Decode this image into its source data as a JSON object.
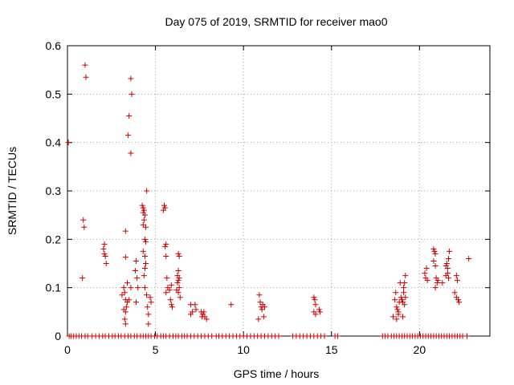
{
  "chart_data": {
    "type": "scatter",
    "title": "Day 075 of 2019, SRMTID for receiver mao0",
    "xlabel": "GPS time / hours",
    "ylabel": "SRMTID / TECUs",
    "xlim": [
      0,
      24
    ],
    "ylim": [
      0,
      0.6
    ],
    "xticks": [
      0,
      5,
      10,
      15,
      20
    ],
    "yticks": [
      0,
      0.1,
      0.2,
      0.3,
      0.4,
      0.5,
      0.6
    ],
    "xtick_labels": [
      "0",
      "5",
      "10",
      "15",
      "20"
    ],
    "ytick_labels": [
      "0",
      "0.1",
      "0.2",
      "0.3",
      "0.4",
      "0.5",
      "0.6"
    ],
    "grid": true,
    "marker": "+",
    "color": "#cc0000",
    "series": [
      {
        "name": "mao0",
        "points": [
          [
            0.05,
            0.4
          ],
          [
            1.0,
            0.56
          ],
          [
            1.05,
            0.535
          ],
          [
            0.9,
            0.24
          ],
          [
            0.95,
            0.225
          ],
          [
            0.85,
            0.12
          ],
          [
            3.6,
            0.532
          ],
          [
            3.65,
            0.5
          ],
          [
            3.5,
            0.455
          ],
          [
            3.45,
            0.415
          ],
          [
            3.6,
            0.378
          ],
          [
            3.3,
            0.217
          ],
          [
            3.3,
            0.163
          ],
          [
            3.4,
            0.11
          ],
          [
            3.2,
            0.1
          ],
          [
            3.25,
            0.09
          ],
          [
            3.3,
            0.075
          ],
          [
            3.4,
            0.07
          ],
          [
            3.35,
            0.06
          ],
          [
            3.2,
            0.055
          ],
          [
            3.3,
            0.05
          ],
          [
            3.25,
            0.035
          ],
          [
            3.3,
            0.025
          ],
          [
            3.5,
            0.075
          ],
          [
            3.1,
            0.085
          ],
          [
            3.6,
            0.1
          ],
          [
            2.1,
            0.19
          ],
          [
            2.05,
            0.18
          ],
          [
            2.1,
            0.17
          ],
          [
            2.15,
            0.165
          ],
          [
            2.2,
            0.15
          ],
          [
            3.9,
            0.155
          ],
          [
            3.85,
            0.135
          ],
          [
            3.95,
            0.12
          ],
          [
            4.0,
            0.1
          ],
          [
            3.9,
            0.07
          ],
          [
            4.25,
            0.27
          ],
          [
            4.3,
            0.265
          ],
          [
            4.35,
            0.26
          ],
          [
            4.3,
            0.255
          ],
          [
            4.4,
            0.25
          ],
          [
            4.35,
            0.24
          ],
          [
            4.3,
            0.23
          ],
          [
            4.45,
            0.225
          ],
          [
            4.5,
            0.3
          ],
          [
            4.4,
            0.2
          ],
          [
            4.45,
            0.195
          ],
          [
            4.3,
            0.175
          ],
          [
            4.4,
            0.165
          ],
          [
            4.45,
            0.15
          ],
          [
            4.4,
            0.14
          ],
          [
            4.35,
            0.125
          ],
          [
            4.4,
            0.1
          ],
          [
            4.5,
            0.085
          ],
          [
            4.55,
            0.06
          ],
          [
            4.7,
            0.08
          ],
          [
            4.75,
            0.07
          ],
          [
            4.6,
            0.045
          ],
          [
            4.6,
            0.025
          ],
          [
            5.5,
            0.27
          ],
          [
            5.55,
            0.265
          ],
          [
            5.45,
            0.26
          ],
          [
            5.6,
            0.19
          ],
          [
            5.55,
            0.185
          ],
          [
            5.6,
            0.165
          ],
          [
            5.65,
            0.12
          ],
          [
            5.7,
            0.1
          ],
          [
            5.6,
            0.09
          ],
          [
            5.8,
            0.095
          ],
          [
            5.85,
            0.075
          ],
          [
            5.9,
            0.065
          ],
          [
            5.95,
            0.06
          ],
          [
            5.9,
            0.105
          ],
          [
            6.3,
            0.17
          ],
          [
            6.35,
            0.165
          ],
          [
            6.3,
            0.135
          ],
          [
            6.25,
            0.125
          ],
          [
            6.35,
            0.12
          ],
          [
            6.3,
            0.115
          ],
          [
            6.25,
            0.11
          ],
          [
            6.35,
            0.1
          ],
          [
            6.3,
            0.09
          ],
          [
            6.4,
            0.08
          ],
          [
            6.2,
            0.095
          ],
          [
            7.0,
            0.065
          ],
          [
            7.25,
            0.065
          ],
          [
            7.1,
            0.05
          ],
          [
            7.0,
            0.045
          ],
          [
            7.3,
            0.055
          ],
          [
            7.6,
            0.05
          ],
          [
            7.7,
            0.045
          ],
          [
            7.8,
            0.04
          ],
          [
            7.9,
            0.035
          ],
          [
            7.65,
            0.04
          ],
          [
            7.75,
            0.05
          ],
          [
            9.3,
            0.065
          ],
          [
            10.9,
            0.085
          ],
          [
            10.95,
            0.07
          ],
          [
            11.0,
            0.06
          ],
          [
            11.1,
            0.065
          ],
          [
            11.05,
            0.055
          ],
          [
            11.15,
            0.04
          ],
          [
            10.85,
            0.035
          ],
          [
            11.2,
            0.06
          ],
          [
            14.0,
            0.08
          ],
          [
            14.05,
            0.075
          ],
          [
            14.1,
            0.065
          ],
          [
            14.0,
            0.05
          ],
          [
            14.1,
            0.045
          ],
          [
            14.3,
            0.055
          ],
          [
            14.35,
            0.05
          ],
          [
            18.5,
            0.04
          ],
          [
            18.6,
            0.075
          ],
          [
            18.65,
            0.09
          ],
          [
            18.7,
            0.06
          ],
          [
            18.75,
            0.055
          ],
          [
            18.8,
            0.05
          ],
          [
            18.85,
            0.07
          ],
          [
            18.9,
            0.11
          ],
          [
            18.95,
            0.08
          ],
          [
            19.0,
            0.075
          ],
          [
            19.05,
            0.07
          ],
          [
            18.7,
            0.035
          ],
          [
            18.8,
            0.045
          ],
          [
            19.05,
            0.04
          ],
          [
            19.1,
            0.1
          ],
          [
            19.15,
            0.11
          ],
          [
            19.2,
            0.125
          ],
          [
            19.1,
            0.09
          ],
          [
            19.15,
            0.065
          ],
          [
            19.2,
            0.08
          ],
          [
            20.3,
            0.13
          ],
          [
            20.35,
            0.12
          ],
          [
            20.4,
            0.14
          ],
          [
            20.45,
            0.115
          ],
          [
            20.8,
            0.18
          ],
          [
            20.85,
            0.175
          ],
          [
            20.9,
            0.17
          ],
          [
            20.8,
            0.155
          ],
          [
            20.9,
            0.145
          ],
          [
            20.95,
            0.12
          ],
          [
            21.0,
            0.11
          ],
          [
            20.9,
            0.1
          ],
          [
            21.05,
            0.115
          ],
          [
            21.3,
            0.11
          ],
          [
            21.5,
            0.145
          ],
          [
            21.55,
            0.15
          ],
          [
            21.6,
            0.14
          ],
          [
            21.65,
            0.16
          ],
          [
            21.7,
            0.175
          ],
          [
            21.6,
            0.13
          ],
          [
            21.5,
            0.125
          ],
          [
            21.65,
            0.12
          ],
          [
            22.1,
            0.125
          ],
          [
            22.15,
            0.115
          ],
          [
            22.0,
            0.09
          ],
          [
            22.1,
            0.08
          ],
          [
            22.2,
            0.075
          ],
          [
            22.25,
            0.07
          ],
          [
            22.8,
            0.16
          ],
          [
            0.1,
            0.0
          ],
          [
            0.2,
            0.0
          ],
          [
            0.35,
            0.0
          ],
          [
            0.5,
            0.0
          ],
          [
            0.65,
            0.0
          ],
          [
            0.8,
            0.0
          ],
          [
            1.0,
            0.0
          ],
          [
            1.15,
            0.0
          ],
          [
            1.4,
            0.0
          ],
          [
            1.6,
            0.0
          ],
          [
            1.8,
            0.0
          ],
          [
            2.0,
            0.0
          ],
          [
            2.15,
            0.0
          ],
          [
            2.35,
            0.0
          ],
          [
            2.55,
            0.0
          ],
          [
            2.7,
            0.0
          ],
          [
            2.9,
            0.0
          ],
          [
            3.05,
            0.0
          ],
          [
            3.25,
            0.0
          ],
          [
            3.45,
            0.0
          ],
          [
            3.6,
            0.0
          ],
          [
            3.8,
            0.0
          ],
          [
            3.95,
            0.0
          ],
          [
            4.15,
            0.0
          ],
          [
            4.3,
            0.0
          ],
          [
            4.45,
            0.0
          ],
          [
            4.6,
            0.0
          ],
          [
            4.75,
            0.0
          ],
          [
            4.95,
            0.0
          ],
          [
            5.1,
            0.0
          ],
          [
            5.3,
            0.0
          ],
          [
            5.45,
            0.0
          ],
          [
            5.6,
            0.0
          ],
          [
            5.8,
            0.0
          ],
          [
            6.0,
            0.0
          ],
          [
            6.15,
            0.0
          ],
          [
            6.3,
            0.0
          ],
          [
            6.5,
            0.0
          ],
          [
            6.65,
            0.0
          ],
          [
            6.8,
            0.0
          ],
          [
            7.0,
            0.0
          ],
          [
            7.2,
            0.0
          ],
          [
            7.4,
            0.0
          ],
          [
            7.6,
            0.0
          ],
          [
            7.8,
            0.0
          ],
          [
            8.0,
            0.0
          ],
          [
            8.2,
            0.0
          ],
          [
            8.45,
            0.0
          ],
          [
            8.6,
            0.0
          ],
          [
            8.8,
            0.0
          ],
          [
            9.0,
            0.0
          ],
          [
            9.2,
            0.0
          ],
          [
            9.4,
            0.0
          ],
          [
            9.6,
            0.0
          ],
          [
            9.8,
            0.0
          ],
          [
            10.0,
            0.0
          ],
          [
            10.2,
            0.0
          ],
          [
            10.4,
            0.0
          ],
          [
            10.6,
            0.0
          ],
          [
            10.8,
            0.0
          ],
          [
            11.0,
            0.0
          ],
          [
            11.2,
            0.0
          ],
          [
            11.4,
            0.0
          ],
          [
            11.6,
            0.0
          ],
          [
            11.8,
            0.0
          ],
          [
            12.0,
            0.0
          ],
          [
            12.8,
            0.0
          ],
          [
            13.0,
            0.0
          ],
          [
            13.2,
            0.0
          ],
          [
            13.4,
            0.0
          ],
          [
            13.6,
            0.0
          ],
          [
            13.8,
            0.0
          ],
          [
            14.0,
            0.0
          ],
          [
            14.2,
            0.0
          ],
          [
            14.4,
            0.0
          ],
          [
            14.6,
            0.0
          ],
          [
            15.2,
            0.0
          ],
          [
            15.35,
            0.0
          ],
          [
            17.9,
            0.0
          ],
          [
            18.05,
            0.0
          ],
          [
            18.2,
            0.0
          ],
          [
            18.4,
            0.0
          ],
          [
            18.55,
            0.0
          ],
          [
            18.7,
            0.0
          ],
          [
            18.85,
            0.0
          ],
          [
            19.0,
            0.0
          ],
          [
            19.15,
            0.0
          ],
          [
            19.3,
            0.0
          ],
          [
            19.45,
            0.0
          ],
          [
            19.6,
            0.0
          ],
          [
            19.75,
            0.0
          ],
          [
            19.9,
            0.0
          ],
          [
            20.05,
            0.0
          ],
          [
            20.2,
            0.0
          ],
          [
            20.35,
            0.0
          ],
          [
            20.5,
            0.0
          ],
          [
            20.65,
            0.0
          ],
          [
            20.8,
            0.0
          ],
          [
            20.95,
            0.0
          ],
          [
            21.1,
            0.0
          ],
          [
            21.25,
            0.0
          ],
          [
            21.4,
            0.0
          ],
          [
            21.55,
            0.0
          ],
          [
            21.7,
            0.0
          ],
          [
            21.85,
            0.0
          ],
          [
            22.0,
            0.0
          ],
          [
            22.15,
            0.0
          ],
          [
            22.3,
            0.0
          ],
          [
            22.45,
            0.0
          ],
          [
            22.7,
            0.0
          ]
        ]
      }
    ]
  }
}
